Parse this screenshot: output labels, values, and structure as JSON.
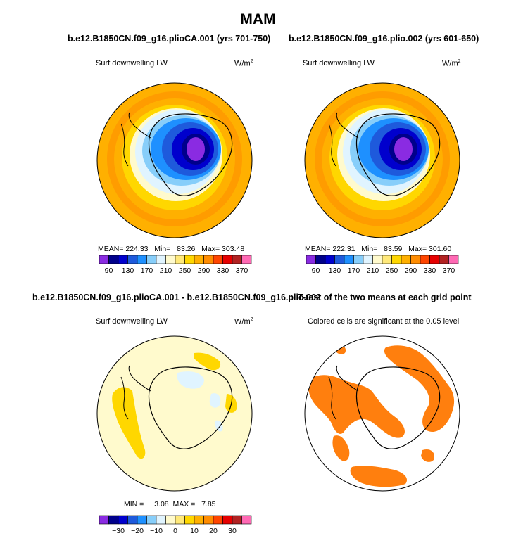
{
  "title": "MAM",
  "panels": [
    {
      "title": "b.e12.B1850CN.f09_g16.plioCA.001 (yrs 701-750)",
      "left_label": "Surf downwelling LW",
      "units": "W/m",
      "units_sup": "2",
      "stats": {
        "mean_label": "MEAN=",
        "mean": "224.33",
        "min_label": "Min=",
        "min": "83.26",
        "max_label": "Max=",
        "max": "303.48"
      }
    },
    {
      "title": "b.e12.B1850CN.f09_g16.plio.002 (yrs 601-650)",
      "left_label": "Surf downwelling LW",
      "units": "W/m",
      "units_sup": "2",
      "stats": {
        "mean_label": "MEAN=",
        "mean": "222.31",
        "min_label": "Min=",
        "min": "83.59",
        "max_label": "Max=",
        "max": "301.60"
      }
    },
    {
      "title": "b.e12.B1850CN.f09_g16.plioCA.001 - b.e12.B1850CN.f09_g16.plio.002",
      "left_label": "Surf downwelling LW",
      "units": "W/m",
      "units_sup": "2",
      "stats": {
        "min_label": "MIN =",
        "min": "−3.08",
        "max_label": "MAX =",
        "max": "7.85"
      }
    },
    {
      "title": "T-test of the two means at each grid point",
      "left_label": "Colored cells are significant at the 0.05 level"
    }
  ],
  "colorbar_abs": {
    "colors": [
      "#8a2be2",
      "#00008b",
      "#0000cd",
      "#1e5adc",
      "#1e90ff",
      "#87cefa",
      "#e0f4ff",
      "#fffacd",
      "#ffe97a",
      "#ffd700",
      "#ffb000",
      "#ff8c00",
      "#ff4500",
      "#e60000",
      "#b22222",
      "#ff69b4"
    ],
    "tick_labels": [
      "90",
      "130",
      "170",
      "210",
      "250",
      "290",
      "330",
      "370"
    ]
  },
  "colorbar_diff": {
    "colors": [
      "#8a2be2",
      "#00008b",
      "#0000cd",
      "#1e5adc",
      "#1e90ff",
      "#87cefa",
      "#e0f4ff",
      "#fffacd",
      "#ffe97a",
      "#ffd700",
      "#ffb000",
      "#ff8c00",
      "#ff4500",
      "#e60000",
      "#b22222",
      "#ff69b4"
    ],
    "tick_labels": [
      "−30",
      "−20",
      "−10",
      "0",
      "10",
      "20",
      "30"
    ]
  },
  "chart_data": [
    {
      "type": "heatmap",
      "title": "b.e12.B1850CN.f09_g16.plioCA.001 (yrs 701-750)",
      "variable": "Surf downwelling LW",
      "units": "W/m2",
      "mean": 224.33,
      "min": 83.26,
      "max": 303.48,
      "levels": [
        90,
        110,
        130,
        150,
        170,
        190,
        210,
        230,
        250,
        270,
        290,
        310,
        330,
        350,
        370
      ]
    },
    {
      "type": "heatmap",
      "title": "b.e12.B1850CN.f09_g16.plio.002 (yrs 601-650)",
      "variable": "Surf downwelling LW",
      "units": "W/m2",
      "mean": 222.31,
      "min": 83.59,
      "max": 301.6,
      "levels": [
        90,
        110,
        130,
        150,
        170,
        190,
        210,
        230,
        250,
        270,
        290,
        310,
        330,
        350,
        370
      ]
    },
    {
      "type": "heatmap",
      "title": "b.e12.B1850CN.f09_g16.plioCA.001 - b.e12.B1850CN.f09_g16.plio.002",
      "variable": "Surf downwelling LW",
      "units": "W/m2",
      "min": -3.08,
      "max": 7.85,
      "levels": [
        -35,
        -30,
        -25,
        -20,
        -15,
        -10,
        -5,
        0,
        5,
        10,
        15,
        20,
        25,
        30,
        35
      ]
    },
    {
      "type": "heatmap",
      "title": "T-test of the two means at each grid point",
      "note": "Colored cells are significant at the 0.05 level",
      "significance_level": 0.05
    }
  ]
}
